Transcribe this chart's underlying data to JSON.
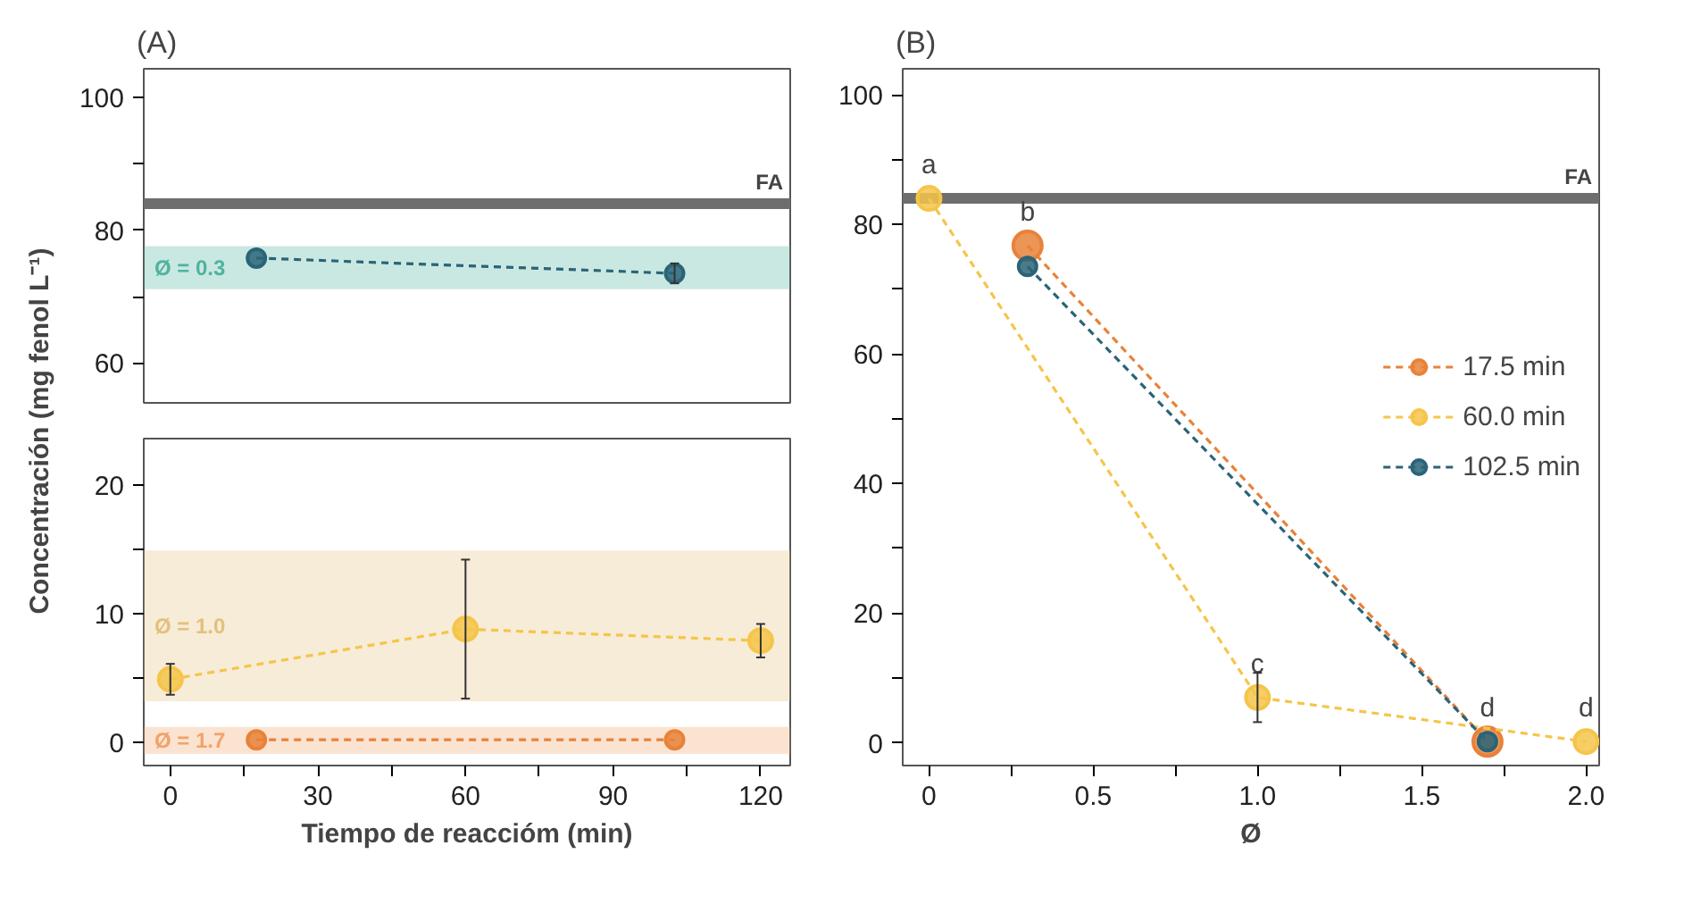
{
  "chart_data": [
    {
      "type": "line",
      "title": "(A)",
      "ylabel": "Concentración (mg fenol L⁻¹)",
      "xlim": [
        -5.4,
        126
      ],
      "ylim": [
        54,
        104.3
      ],
      "yticks": [
        60,
        {
          "value": 70,
          "label": null
        },
        80,
        {
          "value": 90,
          "label": null
        },
        100
      ],
      "xticks": [
        0,
        30,
        60,
        90,
        120
      ],
      "tick_labels": "y",
      "marker": "circle",
      "line_style": "dashed",
      "grid": false,
      "legend": false,
      "series": [
        {
          "color": "#2a6478",
          "x": [
            17.5,
            102.5
          ],
          "values": [
            75.8,
            73.5
          ],
          "errors": [
            null,
            1.5
          ]
        }
      ],
      "ref_lines": [
        {
          "axis": "y",
          "value": 84,
          "label": "FA",
          "color": "#6e6e6e"
        }
      ],
      "bands": [
        {
          "axis": "y",
          "from": 71.1,
          "to": 77.6,
          "label": "Ø = 0.3",
          "color": "#4fb3a0"
        }
      ]
    },
    {
      "type": "line",
      "xlabel": "Tiempo de reaccióm (min)",
      "xlim": [
        -5.4,
        126
      ],
      "ylim": [
        -1.8,
        23.6
      ],
      "yticks": [
        0,
        {
          "value": 5,
          "label": null
        },
        10,
        {
          "value": 15,
          "label": null
        },
        20
      ],
      "xticks": [
        0,
        {
          "value": 15,
          "label": null
        },
        30,
        {
          "value": 45,
          "label": null
        },
        60,
        {
          "value": 75,
          "label": null
        },
        90,
        {
          "value": 105,
          "label": null
        },
        120
      ],
      "marker": "circle",
      "line_style": "dashed",
      "grid": false,
      "legend": false,
      "series": [
        {
          "color": "#f5c54a",
          "x": [
            0,
            60,
            120
          ],
          "values": [
            4.9,
            8.8,
            7.9
          ],
          "errors": [
            1.2,
            5.4,
            1.3
          ]
        },
        {
          "color": "#e8823a",
          "x": [
            17.5,
            102.5
          ],
          "values": [
            0.2,
            0.2
          ]
        }
      ],
      "bands": [
        {
          "axis": "y",
          "from": 3.2,
          "to": 14.9,
          "label": "Ø = 1.0",
          "color": "#e4c07d"
        },
        {
          "axis": "y",
          "from": -0.9,
          "to": 1.2,
          "label": "Ø = 1.7",
          "color": "#f2a269"
        }
      ]
    },
    {
      "type": "line",
      "title": "(B)",
      "xlabel": "Ø",
      "xlim": [
        -0.08,
        2.04
      ],
      "ylim": [
        -3.5,
        104
      ],
      "xticks": [
        0,
        {
          "value": 0.25,
          "label": null
        },
        0.5,
        {
          "value": 0.75,
          "label": null
        },
        {
          "value": 1,
          "label": "1.0"
        },
        {
          "value": 1.25,
          "label": null
        },
        1.5,
        {
          "value": 1.75,
          "label": null
        },
        {
          "value": 2,
          "label": "2.0"
        }
      ],
      "yticks": [
        0,
        {
          "value": 10,
          "label": null
        },
        20,
        {
          "value": 30,
          "label": null
        },
        40,
        {
          "value": 50,
          "label": null
        },
        60,
        {
          "value": 70,
          "label": null
        },
        80,
        {
          "value": 90,
          "label": null
        },
        100
      ],
      "marker": "circle",
      "line_style": "dashed",
      "grid": false,
      "legend": "right",
      "series": [
        {
          "name": "17.5 min",
          "color": "#e8823a",
          "x": [
            0.3,
            1.7
          ],
          "values": [
            76.7,
            0.2
          ]
        },
        {
          "name": "60.0 min",
          "color": "#f5c54a",
          "x": [
            0,
            1,
            2
          ],
          "values": [
            84,
            7,
            0.2
          ],
          "errors": [
            null,
            3.8,
            null
          ]
        },
        {
          "name": "102.5 min",
          "color": "#2a6478",
          "x": [
            0.3,
            1.7
          ],
          "values": [
            73.5,
            0.2
          ]
        }
      ],
      "ref_lines": [
        {
          "axis": "y",
          "value": 84,
          "label": "FA",
          "color": "#6e6e6e"
        }
      ],
      "annotations": [
        {
          "text": "a",
          "x": 0,
          "y": 84
        },
        {
          "text": "b",
          "x": 0.3,
          "y": 76.7
        },
        {
          "text": "c",
          "x": 1,
          "y": 7
        },
        {
          "text": "d",
          "x": 1.7,
          "y": 0.2
        },
        {
          "text": "d",
          "x": 2,
          "y": 0.2
        }
      ]
    }
  ]
}
